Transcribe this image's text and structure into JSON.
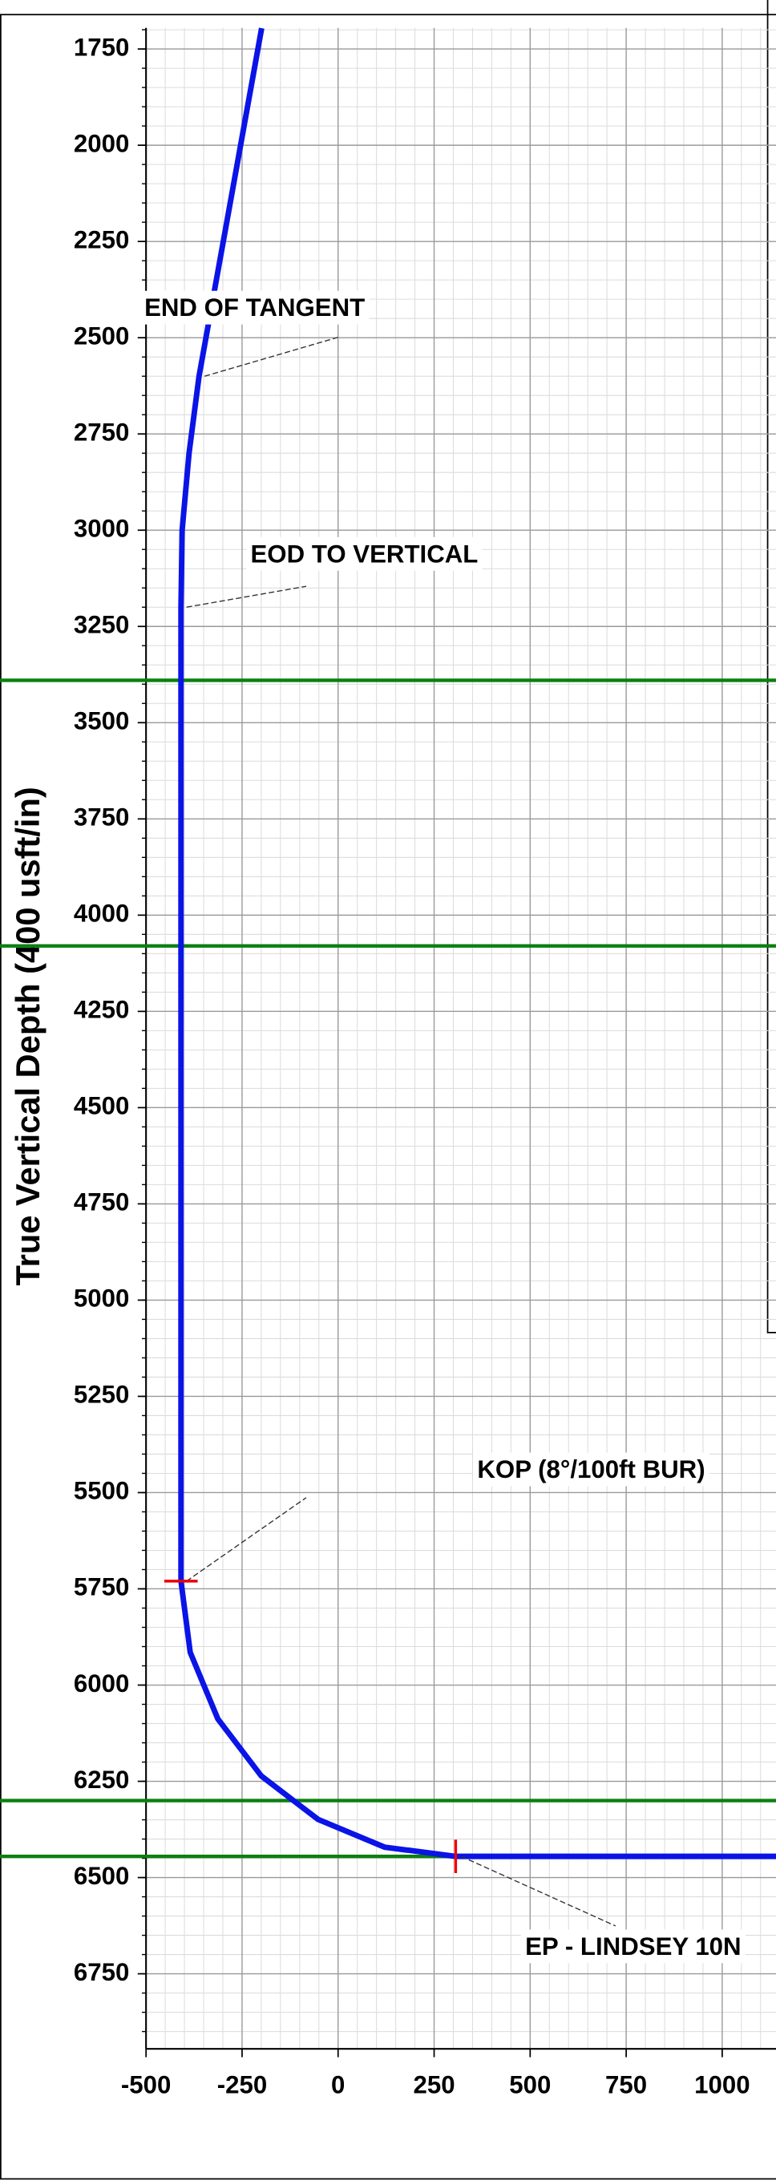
{
  "chart_data": {
    "type": "line",
    "y_label": "True Vertical Depth (400 usft/in)",
    "xlim": [
      -500,
      1140
    ],
    "ylim": [
      6945,
      1695
    ],
    "xticks": [
      -500,
      -250,
      0,
      250,
      500,
      750,
      1000
    ],
    "yticks": [
      1750,
      2000,
      2250,
      2500,
      2750,
      3000,
      3250,
      3500,
      3750,
      4000,
      4250,
      4500,
      4750,
      5000,
      5250,
      5500,
      5750,
      6000,
      6250,
      6500,
      6750
    ],
    "grid": true,
    "minor_step": 50,
    "series": [
      {
        "color": "#0a14e6",
        "x": [
          -199,
          -362,
          -388,
          -406,
          -409,
          -409,
          -385,
          -313,
          -200,
          -52,
          121,
          306,
          1140
        ],
        "y": [
          1696,
          2600,
          2800,
          3000,
          3200,
          5730,
          5915,
          6088,
          6236,
          6349,
          6421,
          6445,
          6445
        ]
      }
    ],
    "formation_tops": {
      "color": "#0a8010",
      "values": [
        3390,
        4080,
        6300,
        6445
      ]
    },
    "annotations": [
      {
        "text": "END OF TANGENT",
        "x": -362,
        "y": 2600
      },
      {
        "text": "EOD TO VERTICAL",
        "x": -409,
        "y": 3200
      },
      {
        "text": "KOP (8°/100ft BUR)",
        "x": -409,
        "y": 5730
      },
      {
        "text": "EP - LINDSEY 10N",
        "x": 306,
        "y": 6445
      }
    ]
  }
}
